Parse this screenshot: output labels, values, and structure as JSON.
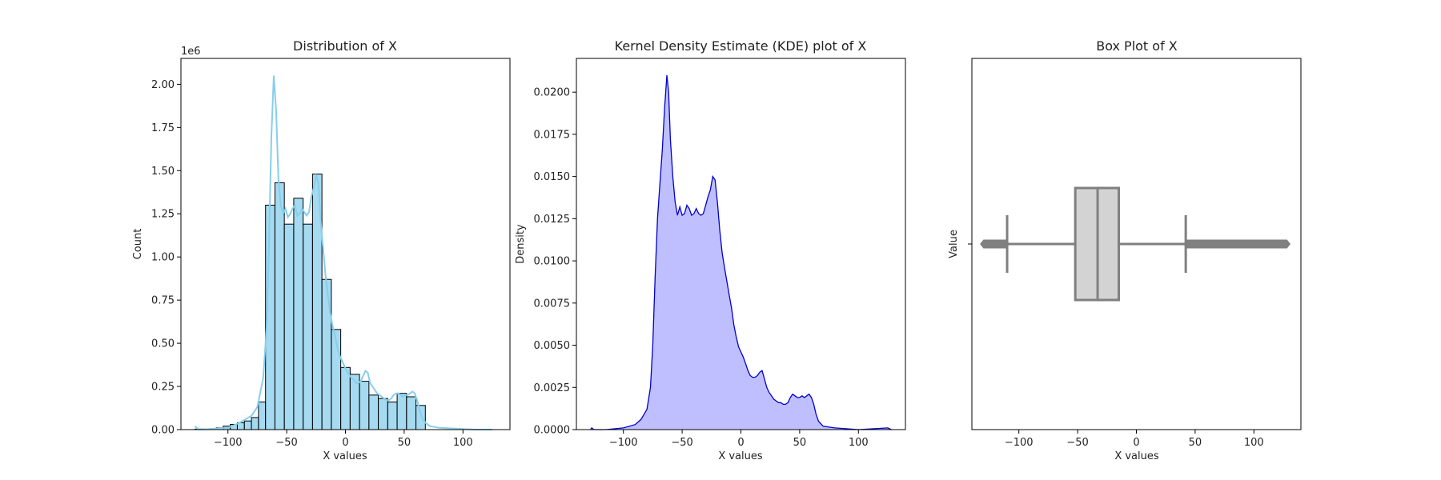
{
  "chart_data": [
    {
      "type": "histogram",
      "title": "Distribution of X",
      "xlabel": "X values",
      "ylabel": "Count",
      "y_multiplier_label": "1e6",
      "xlim": [
        -140,
        140
      ],
      "ylim": [
        0,
        2.15
      ],
      "xticks": [
        -100,
        -50,
        0,
        50,
        100
      ],
      "xtick_labels": [
        "−100",
        "−50",
        "0",
        "50",
        "100"
      ],
      "yticks": [
        0,
        0.25,
        0.5,
        0.75,
        1.0,
        1.25,
        1.5,
        1.75,
        2.0
      ],
      "ytick_labels": [
        "0.00",
        "0.25",
        "0.50",
        "0.75",
        "1.00",
        "1.25",
        "1.50",
        "1.75",
        "2.00"
      ],
      "bar_color": "#87ceeb",
      "edge_color": "#000000",
      "kde_color": "#87ceeb",
      "bins": [
        {
          "x0": -128,
          "x1": -122,
          "count": 0.003
        },
        {
          "x0": -122,
          "x1": -116,
          "count": 0.003
        },
        {
          "x0": -116,
          "x1": -110,
          "count": 0.005
        },
        {
          "x0": -110,
          "x1": -104,
          "count": 0.01
        },
        {
          "x0": -104,
          "x1": -98,
          "count": 0.02
        },
        {
          "x0": -98,
          "x1": -92,
          "count": 0.03
        },
        {
          "x0": -92,
          "x1": -86,
          "count": 0.04
        },
        {
          "x0": -86,
          "x1": -80,
          "count": 0.05
        },
        {
          "x0": -80,
          "x1": -74,
          "count": 0.07
        },
        {
          "x0": -74,
          "x1": -68,
          "count": 0.16
        },
        {
          "x0": -68,
          "x1": -60,
          "count": 1.3
        },
        {
          "x0": -60,
          "x1": -52,
          "count": 1.43
        },
        {
          "x0": -52,
          "x1": -44,
          "count": 1.19
        },
        {
          "x0": -44,
          "x1": -36,
          "count": 1.34
        },
        {
          "x0": -36,
          "x1": -28,
          "count": 1.19
        },
        {
          "x0": -28,
          "x1": -20,
          "count": 1.48
        },
        {
          "x0": -20,
          "x1": -12,
          "count": 0.87
        },
        {
          "x0": -12,
          "x1": -4,
          "count": 0.58
        },
        {
          "x0": -4,
          "x1": 4,
          "count": 0.36
        },
        {
          "x0": 4,
          "x1": 12,
          "count": 0.32
        },
        {
          "x0": 12,
          "x1": 20,
          "count": 0.28
        },
        {
          "x0": 20,
          "x1": 28,
          "count": 0.2
        },
        {
          "x0": 28,
          "x1": 36,
          "count": 0.18
        },
        {
          "x0": 36,
          "x1": 44,
          "count": 0.16
        },
        {
          "x0": 44,
          "x1": 52,
          "count": 0.21
        },
        {
          "x0": 52,
          "x1": 60,
          "count": 0.19
        },
        {
          "x0": 60,
          "x1": 68,
          "count": 0.14
        }
      ],
      "kde_line": [
        [
          -128,
          0.02
        ],
        [
          -125,
          0.0
        ],
        [
          -110,
          0.005
        ],
        [
          -100,
          0.01
        ],
        [
          -90,
          0.04
        ],
        [
          -80,
          0.08
        ],
        [
          -75,
          0.13
        ],
        [
          -70,
          0.3
        ],
        [
          -67,
          0.6
        ],
        [
          -65,
          1.1
        ],
        [
          -63,
          1.7
        ],
        [
          -61,
          2.05
        ],
        [
          -59,
          1.85
        ],
        [
          -57,
          1.45
        ],
        [
          -55,
          1.3
        ],
        [
          -53,
          1.25
        ],
        [
          -51,
          1.28
        ],
        [
          -49,
          1.23
        ],
        [
          -47,
          1.25
        ],
        [
          -45,
          1.28
        ],
        [
          -43,
          1.3
        ],
        [
          -41,
          1.24
        ],
        [
          -39,
          1.25
        ],
        [
          -37,
          1.28
        ],
        [
          -35,
          1.26
        ],
        [
          -33,
          1.24
        ],
        [
          -31,
          1.26
        ],
        [
          -29,
          1.35
        ],
        [
          -27,
          1.4
        ],
        [
          -25,
          1.47
        ],
        [
          -23,
          1.43
        ],
        [
          -21,
          1.2
        ],
        [
          -19,
          1.05
        ],
        [
          -17,
          0.9
        ],
        [
          -15,
          0.78
        ],
        [
          -13,
          0.68
        ],
        [
          -11,
          0.6
        ],
        [
          -9,
          0.55
        ],
        [
          -7,
          0.48
        ],
        [
          -5,
          0.43
        ],
        [
          -3,
          0.4
        ],
        [
          -1,
          0.37
        ],
        [
          1,
          0.34
        ],
        [
          3,
          0.32
        ],
        [
          5,
          0.3
        ],
        [
          7,
          0.29
        ],
        [
          9,
          0.27
        ],
        [
          11,
          0.27
        ],
        [
          13,
          0.28
        ],
        [
          15,
          0.31
        ],
        [
          17,
          0.34
        ],
        [
          19,
          0.33
        ],
        [
          21,
          0.27
        ],
        [
          23,
          0.25
        ],
        [
          25,
          0.23
        ],
        [
          27,
          0.21
        ],
        [
          29,
          0.2
        ],
        [
          31,
          0.19
        ],
        [
          33,
          0.18
        ],
        [
          35,
          0.17
        ],
        [
          37,
          0.17
        ],
        [
          39,
          0.18
        ],
        [
          41,
          0.2
        ],
        [
          43,
          0.21
        ],
        [
          45,
          0.21
        ],
        [
          47,
          0.2
        ],
        [
          49,
          0.19
        ],
        [
          51,
          0.2
        ],
        [
          53,
          0.2
        ],
        [
          55,
          0.21
        ],
        [
          57,
          0.22
        ],
        [
          59,
          0.21
        ],
        [
          61,
          0.17
        ],
        [
          63,
          0.12
        ],
        [
          65,
          0.07
        ],
        [
          68,
          0.04
        ],
        [
          72,
          0.02
        ],
        [
          80,
          0.01
        ],
        [
          95,
          0.005
        ],
        [
          110,
          0.0
        ],
        [
          125,
          0.0
        ]
      ]
    },
    {
      "type": "area",
      "title": "Kernel Density Estimate (KDE) plot of X",
      "xlabel": "X values",
      "ylabel": "Density",
      "xlim": [
        -140,
        140
      ],
      "ylim": [
        0,
        0.022
      ],
      "xticks": [
        -100,
        -50,
        0,
        50,
        100
      ],
      "xtick_labels": [
        "−100",
        "−50",
        "0",
        "50",
        "100"
      ],
      "yticks": [
        0,
        0.0025,
        0.005,
        0.0075,
        0.01,
        0.0125,
        0.015,
        0.0175,
        0.02
      ],
      "ytick_labels": [
        "0.0000",
        "0.0025",
        "0.0050",
        "0.0075",
        "0.0100",
        "0.0125",
        "0.0150",
        "0.0175",
        "0.0200"
      ],
      "line_color": "#0000cc",
      "fill_color": "#bfbfff",
      "density_line": [
        [
          -128,
          0.0
        ],
        [
          -127,
          0.0001
        ],
        [
          -125,
          0.0
        ],
        [
          -115,
          0.0
        ],
        [
          -100,
          0.0001
        ],
        [
          -90,
          0.0003
        ],
        [
          -85,
          0.0006
        ],
        [
          -80,
          0.0012
        ],
        [
          -77,
          0.0025
        ],
        [
          -75,
          0.005
        ],
        [
          -73,
          0.009
        ],
        [
          -71,
          0.0125
        ],
        [
          -69,
          0.0145
        ],
        [
          -67,
          0.0165
        ],
        [
          -65,
          0.019
        ],
        [
          -63,
          0.021
        ],
        [
          -61.5,
          0.02
        ],
        [
          -60,
          0.0172
        ],
        [
          -58,
          0.015
        ],
        [
          -56,
          0.0135
        ],
        [
          -54,
          0.0127
        ],
        [
          -52,
          0.0132
        ],
        [
          -50,
          0.0127
        ],
        [
          -48,
          0.0128
        ],
        [
          -46,
          0.0133
        ],
        [
          -44,
          0.0131
        ],
        [
          -42,
          0.0127
        ],
        [
          -40,
          0.0128
        ],
        [
          -38,
          0.0131
        ],
        [
          -36,
          0.0128
        ],
        [
          -34,
          0.0127
        ],
        [
          -32,
          0.0128
        ],
        [
          -30,
          0.0133
        ],
        [
          -28,
          0.0138
        ],
        [
          -26,
          0.0142
        ],
        [
          -24,
          0.015
        ],
        [
          -22,
          0.0148
        ],
        [
          -20,
          0.0135
        ],
        [
          -18,
          0.0118
        ],
        [
          -16,
          0.0105
        ],
        [
          -14,
          0.0096
        ],
        [
          -12,
          0.0088
        ],
        [
          -10,
          0.008
        ],
        [
          -8,
          0.0072
        ],
        [
          -6,
          0.0062
        ],
        [
          -4,
          0.0055
        ],
        [
          -2,
          0.0049
        ],
        [
          0,
          0.0046
        ],
        [
          2,
          0.0043
        ],
        [
          4,
          0.0039
        ],
        [
          6,
          0.0035
        ],
        [
          8,
          0.0032
        ],
        [
          10,
          0.0031
        ],
        [
          12,
          0.0031
        ],
        [
          14,
          0.0032
        ],
        [
          16,
          0.0034
        ],
        [
          18,
          0.0035
        ],
        [
          20,
          0.003
        ],
        [
          22,
          0.0025
        ],
        [
          24,
          0.0022
        ],
        [
          26,
          0.002
        ],
        [
          28,
          0.0018
        ],
        [
          30,
          0.0017
        ],
        [
          32,
          0.0016
        ],
        [
          34,
          0.0016
        ],
        [
          36,
          0.0015
        ],
        [
          38,
          0.0015
        ],
        [
          40,
          0.0016
        ],
        [
          42,
          0.0019
        ],
        [
          44,
          0.0021
        ],
        [
          46,
          0.002
        ],
        [
          48,
          0.0019
        ],
        [
          50,
          0.0019
        ],
        [
          52,
          0.002
        ],
        [
          54,
          0.0019
        ],
        [
          56,
          0.002
        ],
        [
          58,
          0.0021
        ],
        [
          60,
          0.0019
        ],
        [
          62,
          0.0015
        ],
        [
          64,
          0.0009
        ],
        [
          66,
          0.0005
        ],
        [
          70,
          0.0002
        ],
        [
          80,
          0.0001
        ],
        [
          100,
          0.0
        ],
        [
          125,
          0.0001
        ],
        [
          128,
          0.0
        ]
      ]
    },
    {
      "type": "box",
      "title": "Box Plot of X",
      "xlabel": "X values",
      "ylabel": "Value",
      "xlim": [
        -140,
        140
      ],
      "xticks": [
        -100,
        -50,
        0,
        50,
        100
      ],
      "xtick_labels": [
        "−100",
        "−50",
        "0",
        "50",
        "100"
      ],
      "box_color": "#d3d3d3",
      "edge_color": "#808080",
      "stats": {
        "whisker_low": -110,
        "q1": -52,
        "median": -33,
        "q3": -15,
        "whisker_high": 42,
        "outliers_low": [
          -130,
          -111
        ],
        "outliers_high": [
          43,
          128
        ]
      }
    }
  ]
}
